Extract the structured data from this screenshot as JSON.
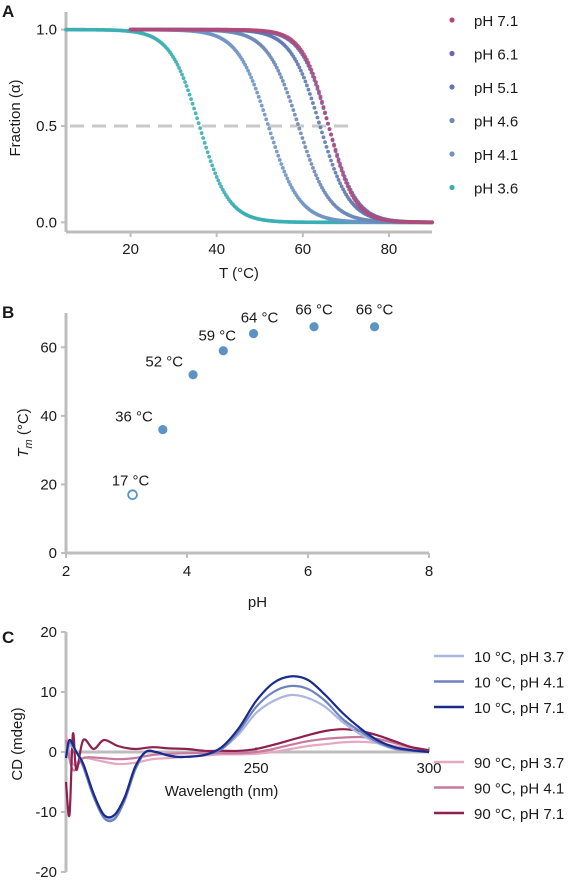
{
  "chart_data": [
    {
      "panel": "A",
      "type": "scatter",
      "xlabel": "T (°C)",
      "ylabel": "Fraction (α)",
      "xlim": [
        5,
        90
      ],
      "ylim": [
        -0.05,
        1.05
      ],
      "xticks": [
        "20",
        "40",
        "60",
        "80"
      ],
      "yticks": [
        "0.0",
        "0.5",
        "1.0"
      ],
      "reference_line": {
        "y": 0.5,
        "style": "dashed",
        "color": "#c8c8c8"
      },
      "legend_position": "right",
      "series": [
        {
          "name": "pH 7.1",
          "color": "#b24a78",
          "tm": 66,
          "slope": 3.0,
          "x_start": 20,
          "x_end": 90
        },
        {
          "name": "pH 6.1",
          "color": "#6a66b2",
          "tm": 66,
          "slope": 3.2,
          "x_start": 20,
          "x_end": 90
        },
        {
          "name": "pH 5.1",
          "color": "#5d78b0",
          "tm": 64,
          "slope": 3.4,
          "x_start": 20,
          "x_end": 90
        },
        {
          "name": "pH 4.6",
          "color": "#6a88b8",
          "tm": 59,
          "slope": 3.6,
          "x_start": 20,
          "x_end": 90
        },
        {
          "name": "pH 4.1",
          "color": "#6e93c4",
          "tm": 52,
          "slope": 3.6,
          "x_start": 20,
          "x_end": 90
        },
        {
          "name": "pH 3.6",
          "color": "#3aaeb4",
          "tm": 36,
          "slope": 3.4,
          "x_start": 5,
          "x_end": 90
        }
      ]
    },
    {
      "panel": "B",
      "type": "scatter",
      "xlabel": "pH",
      "ylabel_main": "T",
      "ylabel_sub": "m",
      "ylabel_unit": " (°C)",
      "xlim": [
        2,
        8
      ],
      "ylim": [
        0,
        70
      ],
      "xticks": [
        "2",
        "4",
        "6",
        "8"
      ],
      "yticks": [
        "0",
        "20",
        "40",
        "60"
      ],
      "points": [
        {
          "x": 3.1,
          "y": 17,
          "label": "17 °C",
          "filled": false
        },
        {
          "x": 3.6,
          "y": 36,
          "label": "36 °C",
          "filled": true
        },
        {
          "x": 4.1,
          "y": 52,
          "label": "52 °C",
          "filled": true
        },
        {
          "x": 4.6,
          "y": 59,
          "label": "59 °C",
          "filled": true
        },
        {
          "x": 5.1,
          "y": 64,
          "label": "64 °C",
          "filled": true
        },
        {
          "x": 6.1,
          "y": 66,
          "label": "66 °C",
          "filled": true
        },
        {
          "x": 7.1,
          "y": 66,
          "label": "66 °C",
          "filled": true
        }
      ],
      "point_color": "#5b93c2"
    },
    {
      "panel": "C",
      "type": "line",
      "xlabel": "Wavelength (nm)",
      "ylabel": "CD (mdeg)",
      "xlim": [
        195,
        300
      ],
      "ylim": [
        -20,
        20
      ],
      "xticks": [
        "250",
        "300"
      ],
      "yticks": [
        "-20",
        "-10",
        "0",
        "10",
        "20"
      ],
      "legend_position": "right",
      "series": [
        {
          "name": "10 °C, pH 3.7",
          "color": "#aab6e0",
          "x": [
            195,
            196,
            198,
            200,
            203,
            206,
            209,
            212,
            215,
            218,
            221,
            224,
            227,
            230,
            235,
            240,
            245,
            250,
            255,
            260,
            265,
            270,
            275,
            280,
            285,
            290,
            295,
            300
          ],
          "y": [
            -1,
            1,
            0,
            -2,
            -7,
            -10.5,
            -11,
            -8,
            -3,
            0,
            0,
            -0.5,
            -0.8,
            -0.8,
            -0.5,
            0.5,
            3,
            6.5,
            8.5,
            9.5,
            9,
            7.5,
            5,
            3,
            1.5,
            0.5,
            0.2,
            0
          ]
        },
        {
          "name": "10 °C, pH 4.1",
          "color": "#6f82c0",
          "x": [
            195,
            196,
            198,
            200,
            203,
            206,
            209,
            212,
            215,
            218,
            221,
            224,
            227,
            230,
            235,
            240,
            245,
            250,
            255,
            260,
            265,
            270,
            275,
            280,
            285,
            290,
            295,
            300
          ],
          "y": [
            -1,
            1.5,
            0,
            -2.5,
            -7.5,
            -11,
            -11.2,
            -8,
            -3,
            0,
            0,
            -0.5,
            -0.8,
            -0.8,
            -0.5,
            0.5,
            3.5,
            7.5,
            10,
            11,
            10.5,
            8.5,
            5.5,
            3.5,
            1.7,
            0.6,
            0.2,
            0
          ]
        },
        {
          "name": "10 °C, pH 7.1",
          "color": "#1a2b8c",
          "x": [
            195,
            196,
            198,
            200,
            203,
            206,
            209,
            212,
            215,
            218,
            221,
            224,
            227,
            230,
            235,
            240,
            245,
            250,
            255,
            260,
            265,
            270,
            275,
            280,
            285,
            290,
            295,
            300
          ],
          "y": [
            -1,
            2,
            0,
            -2,
            -7,
            -10.5,
            -10.5,
            -7.5,
            -2.5,
            0,
            0,
            -0.5,
            -0.8,
            -0.8,
            -0.5,
            0.8,
            4,
            8.5,
            11.5,
            12.6,
            12,
            9.5,
            6.5,
            4,
            2,
            0.8,
            0.3,
            0
          ]
        },
        {
          "name": "90 °C, pH 3.7",
          "color": "#e6a8c0",
          "x": [
            195,
            197,
            200,
            205,
            210,
            215,
            220,
            225,
            230,
            235,
            240,
            245,
            250,
            255,
            260,
            265,
            270,
            275,
            280,
            285,
            290,
            295,
            300
          ],
          "y": [
            3,
            -2,
            -1,
            -1.5,
            -2,
            -1.8,
            -1.2,
            -1,
            -0.8,
            -0.6,
            -0.4,
            -0.4,
            -0.3,
            0,
            0.5,
            1,
            1.3,
            1.6,
            1.7,
            1.5,
            1,
            0.5,
            0.2
          ]
        },
        {
          "name": "90 °C, pH 4.1",
          "color": "#c7799e",
          "x": [
            195,
            197,
            200,
            205,
            210,
            215,
            220,
            225,
            230,
            235,
            240,
            245,
            250,
            255,
            260,
            265,
            270,
            275,
            280,
            285,
            290,
            295,
            300
          ],
          "y": [
            2,
            -3,
            -1,
            -1,
            -1.2,
            -1,
            -0.5,
            -0.3,
            -0.2,
            -0.2,
            -0.2,
            -0.2,
            0,
            0.5,
            1.2,
            1.8,
            2.2,
            2.4,
            2.5,
            2.2,
            1.5,
            0.8,
            0.3
          ]
        },
        {
          "name": "90 °C, pH 7.1",
          "color": "#8e1f4e",
          "x": [
            195,
            196,
            197,
            198,
            200,
            203,
            206,
            210,
            215,
            220,
            225,
            230,
            235,
            240,
            245,
            250,
            255,
            260,
            265,
            270,
            275,
            280,
            285,
            290,
            295,
            300
          ],
          "y": [
            -5,
            -10.5,
            3,
            -3,
            2,
            0.5,
            2,
            1,
            0.5,
            0.8,
            0.6,
            0.5,
            0.2,
            0.2,
            0.2,
            0.5,
            1.2,
            2,
            2.8,
            3.5,
            3.8,
            3.5,
            2.8,
            1.8,
            0.8,
            0.3
          ]
        }
      ]
    }
  ]
}
